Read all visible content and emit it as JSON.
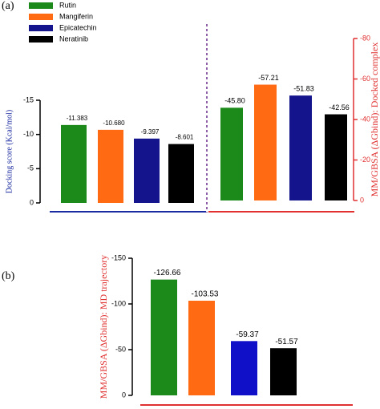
{
  "chart_data": [
    {
      "type": "bar",
      "panel_label": "(a)",
      "ylabel": "Docking score (Kcal/mol)",
      "categories": [
        "Rutin",
        "Mangiferin",
        "Epicatechin",
        "Neratinib"
      ],
      "colors": [
        "#1b8a1b",
        "#ff6a13",
        "#14148c",
        "#000000"
      ],
      "values": [
        -11.383,
        -10.68,
        -9.397,
        -8.601
      ],
      "value_labels": [
        "-11.383",
        "-10.680",
        "-9.397",
        "-8.601"
      ],
      "ylim": [
        0,
        -15
      ],
      "yticks": [
        -15,
        -10,
        -5,
        0
      ]
    },
    {
      "type": "bar",
      "ylabel": "MM/GBSA (ΔGbind): Docked complex",
      "categories": [
        "Rutin",
        "Mangiferin",
        "Epicatechin",
        "Neratinib"
      ],
      "colors": [
        "#1b8a1b",
        "#ff6a13",
        "#14148c",
        "#000000"
      ],
      "values": [
        -45.8,
        -57.21,
        -51.83,
        -42.56
      ],
      "value_labels": [
        "-45.80",
        "-57.21",
        "-51.83",
        "-42.56"
      ],
      "ylim": [
        0,
        -80
      ],
      "yticks": [
        0,
        -20,
        -40,
        -60,
        -80
      ]
    },
    {
      "type": "bar",
      "panel_label": "(b)",
      "ylabel": "MM/GBSA (ΔGbind): MD trajectory",
      "categories": [
        "Rutin",
        "Mangiferin",
        "Epicatechin",
        "Neratinib"
      ],
      "colors": [
        "#1b8a1b",
        "#ff6a13",
        "#1010c8",
        "#000000"
      ],
      "values": [
        -126.66,
        -103.53,
        -59.37,
        -51.57
      ],
      "value_labels": [
        "-126.66",
        "-103.53",
        "-59.37",
        "-51.57"
      ],
      "ylim": [
        0,
        -150
      ],
      "yticks": [
        -150,
        -100,
        -50,
        0
      ]
    }
  ]
}
